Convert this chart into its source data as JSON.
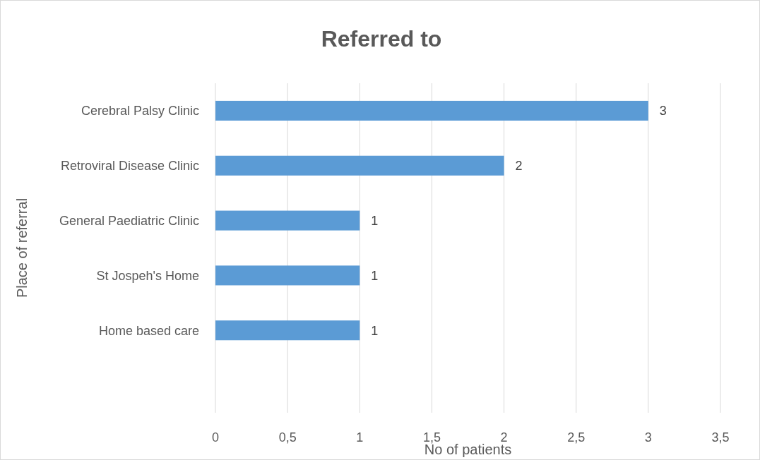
{
  "chart_data": {
    "type": "bar",
    "orientation": "horizontal",
    "title": "Referred to",
    "xlabel": "No of patients",
    "ylabel": "Place of referral",
    "categories": [
      "Cerebral Palsy Clinic",
      "Retroviral Disease Clinic",
      "General Paediatric Clinic",
      "St Jospeh's Home",
      "Home based care",
      null
    ],
    "values": [
      3,
      2,
      1,
      1,
      1,
      null
    ],
    "color": "#5b9bd5",
    "xlim": [
      0,
      3.5
    ],
    "xticks": [
      0,
      {
        "value": 0.5,
        "label": "0,5"
      },
      1,
      {
        "value": 1.5,
        "label": "1,5"
      },
      2,
      {
        "value": 2.5,
        "label": "2,5"
      },
      3,
      {
        "value": 3.5,
        "label": "3,5"
      }
    ],
    "grid": "x",
    "data_labels": true
  }
}
